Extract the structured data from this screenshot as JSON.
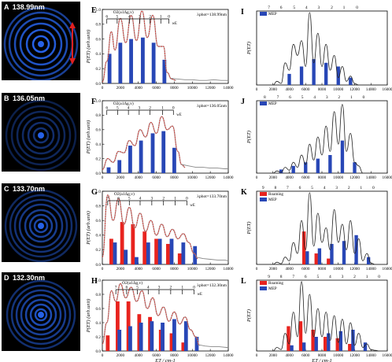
{
  "images": [
    {
      "letter": "A",
      "wavelength": "138.99nm",
      "arrow": true
    },
    {
      "letter": "B",
      "wavelength": "136.05nm",
      "arrow": false
    },
    {
      "letter": "C",
      "wavelength": "133.70nm",
      "arrow": false
    },
    {
      "letter": "D",
      "wavelength": "132.30nm",
      "arrow": false
    }
  ],
  "colors": {
    "bar_blue": "#2847b6",
    "bar_red": "#e8231e",
    "fit_red": "#d8302a",
    "exp_gray": "#888888",
    "theory_black": "#222222",
    "ring": "#2a6cff"
  },
  "chart_data": [
    {
      "id": "E",
      "type": "bar",
      "letter": "E",
      "state_label": "O2(a1Δg,v)",
      "lambda_label": "λphot=138.99nm",
      "ylabel": "P(ET) (arb.unit)",
      "xlabel": "",
      "xlim": [
        0,
        14000
      ],
      "ylim": [
        0,
        1.0
      ],
      "xticks": [
        0,
        2000,
        4000,
        6000,
        8000,
        10000,
        12000,
        14000
      ],
      "yticks": [
        0.0,
        0.2,
        0.4,
        0.6,
        0.8,
        1.0
      ],
      "comb_labels": [
        "6",
        "5",
        "4",
        "3",
        "2",
        "1",
        "0"
      ],
      "comb_x": [
        500,
        1650,
        3000,
        4150,
        5300,
        6500,
        7400
      ],
      "comb_end_label": "wE",
      "blue_bars": {
        "x": [
          800,
          2000,
          3200,
          4500,
          5700,
          6900
        ],
        "values": [
          0.4,
          0.55,
          0.6,
          0.62,
          0.55,
          0.32
        ]
      },
      "red_bars": {
        "x": [],
        "values": []
      },
      "fit": {
        "x": [
          0,
          500,
          1000,
          1400,
          2000,
          2600,
          3200,
          3800,
          4400,
          5000,
          5600,
          6200,
          6800,
          7200,
          7700,
          8200
        ],
        "y": [
          0.02,
          0.3,
          0.7,
          0.45,
          0.88,
          0.55,
          0.92,
          0.58,
          0.98,
          0.62,
          0.92,
          0.5,
          0.5,
          0.15,
          0.06,
          0.04
        ]
      },
      "exp_tail": {
        "x": [
          7600,
          8400,
          9200,
          10000,
          10800,
          11600,
          12400,
          13200,
          14000
        ],
        "y": [
          0.07,
          0.06,
          0.05,
          0.05,
          0.04,
          0.04,
          0.05,
          0.04,
          0.04
        ]
      },
      "legend": []
    },
    {
      "id": "F",
      "type": "bar",
      "letter": "F",
      "state_label": "O2(a1Δg,v)",
      "lambda_label": "λphot=136.05nm",
      "ylabel": "P(ET) (arb.unit)",
      "xlabel": "",
      "xlim": [
        0,
        14000
      ],
      "ylim": [
        0,
        1.0
      ],
      "xticks": [
        0,
        2000,
        4000,
        6000,
        8000,
        10000,
        12000,
        14000
      ],
      "yticks": [
        0.0,
        0.2,
        0.4,
        0.6,
        0.8,
        1.0
      ],
      "comb_labels": [
        "6",
        "5",
        "4",
        "3",
        "2",
        "1",
        "0"
      ],
      "comb_x": [
        500,
        1700,
        2900,
        4100,
        5300,
        6700,
        7900
      ],
      "comb_end_label": "wE",
      "blue_bars": {
        "x": [
          700,
          1900,
          3100,
          4300,
          5600,
          6800,
          8000
        ],
        "values": [
          0.08,
          0.18,
          0.38,
          0.45,
          0.55,
          0.58,
          0.35
        ]
      },
      "red_bars": {
        "x": [],
        "values": []
      },
      "fit": {
        "x": [
          0,
          600,
          1200,
          1800,
          2400,
          3000,
          3600,
          4200,
          4800,
          5400,
          6000,
          6600,
          7200,
          7800,
          8400,
          8800,
          9200
        ],
        "y": [
          0.05,
          0.2,
          0.15,
          0.3,
          0.28,
          0.45,
          0.38,
          0.6,
          0.5,
          0.7,
          0.55,
          0.78,
          0.6,
          0.65,
          0.3,
          0.12,
          0.08
        ]
      },
      "exp_tail": {
        "x": [
          8800,
          9600,
          10400,
          11200,
          12000,
          12800,
          13600,
          14000
        ],
        "y": [
          0.12,
          0.1,
          0.08,
          0.08,
          0.07,
          0.07,
          0.06,
          0.06
        ]
      },
      "legend": []
    },
    {
      "id": "G",
      "type": "bar",
      "letter": "G",
      "state_label": "O2(a1Δg,v)",
      "lambda_label": "λphot=133.70nm",
      "ylabel": "P(ET) (arb.unit)",
      "xlabel": "",
      "xlim": [
        0,
        14000
      ],
      "ylim": [
        0,
        1.0
      ],
      "xticks": [
        0,
        2000,
        4000,
        6000,
        8000,
        10000,
        12000,
        14000
      ],
      "yticks": [
        0.0,
        0.2,
        0.4,
        0.6,
        0.8,
        1.0
      ],
      "comb_labels": [
        "7",
        "6",
        "5",
        "4",
        "3",
        "2",
        "1",
        "0"
      ],
      "comb_x": [
        600,
        1800,
        3000,
        4200,
        5500,
        6800,
        8100,
        9400
      ],
      "comb_end_label": "wE",
      "blue_bars": {
        "x": [
          1400,
          2600,
          3800,
          5100,
          6400,
          7700,
          9000,
          10300
        ],
        "values": [
          0.3,
          0.2,
          0.1,
          0.3,
          0.35,
          0.35,
          0.3,
          0.25
        ]
      },
      "red_bars": {
        "x": [
          1000,
          2200,
          3400,
          4700,
          6000,
          7300,
          8600
        ],
        "values": [
          0.35,
          0.58,
          0.55,
          0.45,
          0.35,
          0.28,
          0.15
        ]
      },
      "fit": {
        "x": [
          0,
          600,
          1200,
          1800,
          2400,
          3000,
          3600,
          4200,
          4800,
          5400,
          6000,
          6600,
          7200,
          7800,
          8400,
          9000,
          9600,
          10200,
          10600
        ],
        "y": [
          0.1,
          0.95,
          0.6,
          0.9,
          0.55,
          0.78,
          0.5,
          0.7,
          0.45,
          0.6,
          0.4,
          0.55,
          0.38,
          0.48,
          0.35,
          0.42,
          0.3,
          0.15,
          0.08
        ]
      },
      "exp_tail": {
        "x": [
          10400,
          11200,
          12000,
          12800,
          13600,
          14000
        ],
        "y": [
          0.1,
          0.08,
          0.07,
          0.06,
          0.06,
          0.05
        ]
      },
      "legend": []
    },
    {
      "id": "H",
      "type": "bar",
      "letter": "H",
      "state_label": "O2(a1Δg,v)",
      "lambda_label": "λphot=132.30nm",
      "ylabel": "P(ET) (arb.unit)",
      "xlabel": "ET / cm-1",
      "xlim": [
        0,
        14000
      ],
      "ylim": [
        0,
        1.0
      ],
      "xticks": [
        0,
        2000,
        4000,
        6000,
        8000,
        10000,
        12000,
        14000
      ],
      "yticks": [
        0.0,
        0.2,
        0.4,
        0.6,
        0.8,
        1.0
      ],
      "comb_labels": [
        "7",
        "6",
        "5",
        "4",
        "3",
        "2",
        "1",
        "0"
      ],
      "comb_x": [
        1500,
        2700,
        3900,
        5100,
        6300,
        7600,
        8900,
        10200
      ],
      "comb_end_label": "wE",
      "blue_bars": {
        "x": [
          1900,
          3100,
          4300,
          5500,
          6700,
          8000,
          9300,
          10500
        ],
        "values": [
          0.3,
          0.35,
          0.4,
          0.42,
          0.4,
          0.45,
          0.42,
          0.2
        ]
      },
      "red_bars": {
        "x": [
          600,
          1700,
          2900,
          4100,
          5300,
          6500,
          7700,
          9000
        ],
        "values": [
          0.22,
          0.7,
          0.7,
          0.52,
          0.48,
          0.3,
          0.25,
          0.12
        ]
      },
      "fit": {
        "x": [
          0,
          500,
          1000,
          1500,
          2000,
          2600,
          3200,
          3800,
          4400,
          5000,
          5600,
          6200,
          6800,
          7400,
          8000,
          8600,
          9200,
          9800,
          10400,
          10800
        ],
        "y": [
          0.1,
          0.4,
          0.85,
          0.7,
          0.95,
          0.75,
          0.9,
          0.7,
          0.85,
          0.6,
          0.75,
          0.5,
          0.62,
          0.42,
          0.55,
          0.38,
          0.48,
          0.3,
          0.2,
          0.08
        ]
      },
      "exp_tail": {
        "x": [
          10600,
          11400,
          12200,
          13000,
          13800,
          14000
        ],
        "y": [
          0.09,
          0.07,
          0.06,
          0.06,
          0.05,
          0.05
        ]
      },
      "legend": []
    },
    {
      "id": "I",
      "type": "bar",
      "letter": "I",
      "ylabel": "P(ET)",
      "xlabel": "",
      "xlim": [
        0,
        16000
      ],
      "ylim": [
        0,
        1.0
      ],
      "xticks": [
        0,
        2000,
        4000,
        6000,
        8000,
        10000,
        12000,
        14000,
        16000
      ],
      "yticks": [],
      "top_labels": [
        "7",
        "6",
        "5",
        "4",
        "3",
        "2",
        "1",
        "0"
      ],
      "top_x": [
        1500,
        3000,
        4600,
        6100,
        7600,
        9200,
        10700,
        12300
      ],
      "blue_bars": {
        "x": [
          4000,
          5500,
          7000,
          8500,
          10000,
          11500
        ],
        "values": [
          0.15,
          0.25,
          0.35,
          0.3,
          0.25,
          0.1
        ]
      },
      "red_bars": {
        "x": [],
        "values": []
      },
      "theory": {
        "x": [
          2000,
          2500,
          3000,
          3500,
          4000,
          4500,
          5000,
          5500,
          6000,
          6500,
          7000,
          7500,
          8000,
          8500,
          9000,
          9500,
          10000,
          10500,
          11000,
          11500,
          12000,
          12500
        ],
        "y": [
          0.0,
          0.05,
          0.02,
          0.3,
          0.2,
          0.55,
          0.4,
          0.6,
          0.25,
          0.98,
          0.3,
          0.7,
          0.25,
          0.55,
          0.2,
          0.4,
          0.1,
          0.25,
          0.05,
          0.12,
          0.02,
          0.0
        ]
      },
      "legend": [
        "MEP"
      ]
    },
    {
      "id": "J",
      "type": "bar",
      "letter": "J",
      "ylabel": "P(ET)",
      "xlabel": "",
      "xlim": [
        0,
        16000
      ],
      "ylim": [
        0,
        1.0
      ],
      "xticks": [
        0,
        2000,
        4000,
        6000,
        8000,
        10000,
        12000,
        14000,
        16000
      ],
      "yticks": [],
      "top_labels": [
        "8",
        "7",
        "6",
        "5",
        "4",
        "3",
        "2",
        "1",
        "0"
      ],
      "top_x": [
        1000,
        2600,
        4100,
        5600,
        7100,
        8600,
        10100,
        11600,
        13100
      ],
      "blue_bars": {
        "x": [
          3000,
          4500,
          6000,
          7500,
          9000,
          10500,
          12000
        ],
        "values": [
          0.05,
          0.1,
          0.15,
          0.2,
          0.25,
          0.45,
          0.15
        ]
      },
      "red_bars": {
        "x": [],
        "values": []
      },
      "theory": {
        "x": [
          2000,
          2500,
          3000,
          3500,
          4000,
          4500,
          5000,
          5500,
          6000,
          6500,
          7000,
          7500,
          8000,
          8500,
          9000,
          9500,
          10000,
          10500,
          11000,
          11500,
          12000,
          12500,
          13000
        ],
        "y": [
          0.0,
          0.03,
          0.01,
          0.08,
          0.04,
          0.15,
          0.08,
          0.25,
          0.12,
          0.4,
          0.18,
          0.5,
          0.25,
          0.65,
          0.3,
          0.85,
          0.4,
          0.95,
          0.3,
          0.55,
          0.15,
          0.1,
          0.0
        ]
      },
      "legend": [
        "MEP"
      ]
    },
    {
      "id": "K",
      "type": "bar",
      "letter": "K",
      "ylabel": "P(ET)",
      "xlabel": "",
      "xlim": [
        0,
        16000
      ],
      "ylim": [
        0,
        1.0
      ],
      "xticks": [
        0,
        2000,
        4000,
        6000,
        8000,
        10000,
        12000,
        14000,
        16000
      ],
      "yticks": [],
      "top_labels": [
        "9",
        "8",
        "7",
        "6",
        "5",
        "4",
        "3",
        "2",
        "1",
        "0"
      ],
      "top_x": [
        800,
        2300,
        3800,
        5300,
        6800,
        8300,
        9800,
        11300,
        12800,
        14300
      ],
      "blue_bars": {
        "x": [
          6200,
          7700,
          9200,
          10700,
          12200,
          13700
        ],
        "values": [
          0.18,
          0.22,
          0.28,
          0.32,
          0.4,
          0.1
        ]
      },
      "red_bars": {
        "x": [
          5800,
          7300,
          8800
        ],
        "values": [
          0.45,
          0.15,
          0.08
        ]
      },
      "theory": {
        "x": [
          2000,
          2500,
          3000,
          3500,
          4000,
          4500,
          5000,
          5500,
          6000,
          6500,
          7000,
          7500,
          8000,
          8500,
          9000,
          9500,
          10000,
          10500,
          11000,
          11500,
          12000,
          12500,
          13000,
          13500,
          14000,
          14500
        ],
        "y": [
          0.0,
          0.03,
          0.01,
          0.1,
          0.05,
          0.3,
          0.15,
          0.6,
          0.2,
          0.98,
          0.25,
          0.7,
          0.3,
          0.5,
          0.2,
          0.75,
          0.3,
          0.55,
          0.2,
          0.6,
          0.15,
          0.35,
          0.05,
          0.15,
          0.02,
          0.0
        ]
      },
      "legend": [
        "Roaming",
        "MEP"
      ]
    },
    {
      "id": "L",
      "type": "bar",
      "letter": "L",
      "ylabel": "P(ET)",
      "xlabel": "ET / cm-1",
      "xlim": [
        0,
        16000
      ],
      "ylim": [
        0,
        1.0
      ],
      "xticks": [
        0,
        2000,
        4000,
        6000,
        8000,
        10000,
        12000,
        14000,
        16000
      ],
      "yticks": [],
      "top_labels": [
        "9",
        "8",
        "7",
        "6",
        "5",
        "4",
        "3",
        "2",
        "1",
        "0"
      ],
      "top_x": [
        1500,
        3000,
        4500,
        6000,
        7500,
        9000,
        10500,
        12000,
        13500,
        15000
      ],
      "blue_bars": {
        "x": [
          4300,
          5800,
          7300,
          8800,
          10300,
          11800,
          13300
        ],
        "values": [
          0.08,
          0.12,
          0.2,
          0.25,
          0.28,
          0.3,
          0.12
        ]
      },
      "red_bars": {
        "x": [
          3900,
          5400,
          6900,
          8400,
          9900,
          11400
        ],
        "values": [
          0.35,
          0.42,
          0.3,
          0.2,
          0.18,
          0.1
        ]
      },
      "theory": {
        "x": [
          2000,
          2500,
          3000,
          3500,
          4000,
          4500,
          5000,
          5500,
          6000,
          6500,
          7000,
          7500,
          8000,
          8500,
          9000,
          9500,
          10000,
          10500,
          11000,
          11500,
          12000,
          12500,
          13000,
          13500,
          14000,
          14500,
          15000
        ],
        "y": [
          0.0,
          0.05,
          0.02,
          0.25,
          0.1,
          0.55,
          0.2,
          0.98,
          0.25,
          0.8,
          0.2,
          0.6,
          0.2,
          0.55,
          0.15,
          0.5,
          0.12,
          0.45,
          0.1,
          0.4,
          0.08,
          0.25,
          0.05,
          0.1,
          0.02,
          0.01,
          0.0
        ]
      },
      "legend": [
        "Roaming",
        "MEP"
      ]
    }
  ]
}
